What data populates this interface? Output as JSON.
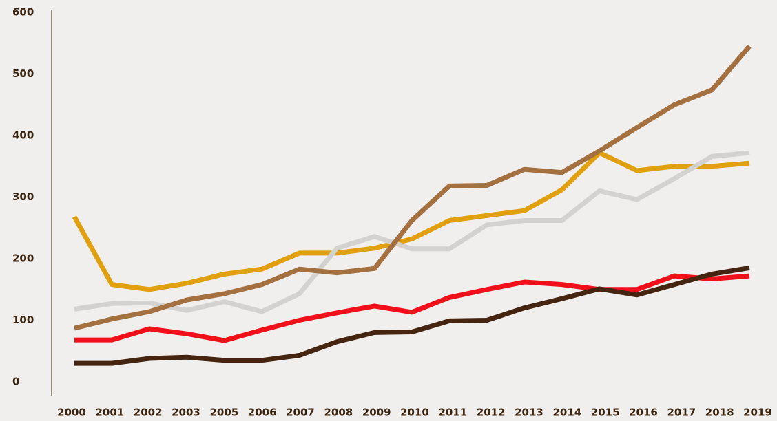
{
  "chart_data": {
    "type": "line",
    "categories": [
      "2000",
      "2001",
      "2002",
      "2003",
      "2005",
      "2006",
      "2007",
      "2008",
      "2009",
      "2010",
      "2011",
      "2012",
      "2013",
      "2014",
      "2015",
      "2016",
      "2017",
      "2018",
      "2019"
    ],
    "series": [
      {
        "color": "#e0a010",
        "values": [
          268,
          158,
          150,
          160,
          175,
          183,
          209,
          209,
          217,
          232,
          262,
          270,
          278,
          312,
          372,
          343,
          350,
          350,
          355
        ]
      },
      {
        "color": "#d3d2d0",
        "values": [
          118,
          127,
          128,
          116,
          130,
          114,
          143,
          217,
          236,
          216,
          216,
          255,
          262,
          262,
          310,
          296,
          330,
          366,
          372
        ]
      },
      {
        "color": "#a4703f",
        "values": [
          87,
          102,
          114,
          133,
          143,
          158,
          183,
          177,
          184,
          262,
          318,
          319,
          345,
          340,
          375,
          413,
          450,
          474,
          545
        ]
      },
      {
        "color": "#f0101a",
        "values": [
          68,
          68,
          86,
          78,
          67,
          84,
          100,
          112,
          123,
          113,
          137,
          150,
          162,
          158,
          150,
          150,
          172,
          167,
          172
        ]
      },
      {
        "color": "#452510",
        "values": [
          30,
          30,
          38,
          40,
          35,
          35,
          43,
          65,
          80,
          81,
          99,
          100,
          120,
          135,
          151,
          141,
          158,
          175,
          185
        ]
      }
    ],
    "ylim": [
      0,
      600
    ],
    "yticks": [
      0,
      100,
      200,
      300,
      400,
      500,
      600
    ],
    "grid": false
  }
}
